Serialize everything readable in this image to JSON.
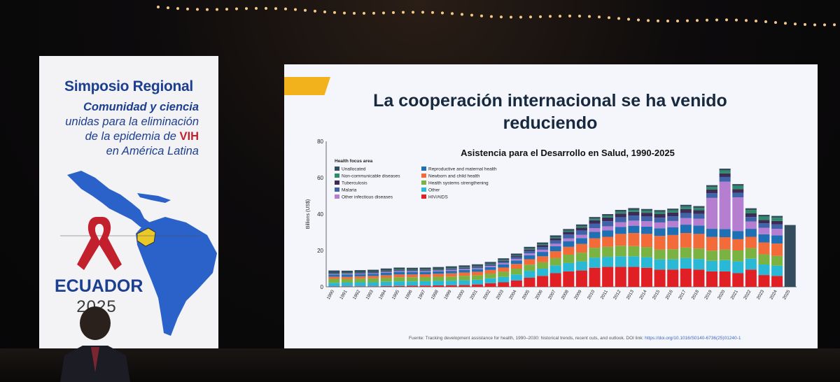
{
  "banner": {
    "title": "Simposio Regional",
    "line1": "Comunidad y ciencia",
    "line2": "unidas para la eliminación",
    "line3_prefix": "de la epidemia de ",
    "line3_highlight": "VIH",
    "line4": "en América Latina",
    "country": "ECUADOR",
    "year": "2025"
  },
  "slide": {
    "title": "La cooperación internacional se ha venido reduciendo",
    "source_text": "Fuente: Tracking development assistance for health, 1990–2030: historical trends, recent cuts, and outlook. DOI link: ",
    "source_link": "https://doi.org/10.1016/S0140-6736(25)01240-1"
  },
  "colors": {
    "accent": "#f2b21b",
    "title": "#17293f",
    "banner_blue": "#1c3f8f",
    "ribbon_red": "#c3202e"
  },
  "chart_data": {
    "type": "bar",
    "stacked": true,
    "title": "Asistencia para el Desarrollo en Salud, 1990-2025",
    "ylabel": "Billions (US$)",
    "xlabel": "",
    "ylim": [
      0,
      80
    ],
    "yticks": [
      0,
      20,
      40,
      60,
      80
    ],
    "legend_title": "Health focus area",
    "categories": [
      "1990",
      "1991",
      "1992",
      "1993",
      "1994",
      "1995",
      "1996",
      "1997",
      "1998",
      "1999",
      "2000",
      "2001",
      "2002",
      "2003",
      "2004",
      "2005",
      "2006",
      "2007",
      "2008",
      "2009",
      "2010",
      "2011",
      "2012",
      "2013",
      "2014",
      "2015",
      "2016",
      "2017",
      "2018",
      "2019",
      "2020",
      "2021",
      "2022",
      "2023",
      "2024",
      "2025"
    ],
    "series": [
      {
        "name": "HIV/AIDS",
        "color": "#e02024",
        "values": [
          0.2,
          0.3,
          0.3,
          0.3,
          0.4,
          0.5,
          0.6,
          0.7,
          0.8,
          0.9,
          1.0,
          1.3,
          2.0,
          2.5,
          3.5,
          5.0,
          6.0,
          7.5,
          8.5,
          9.0,
          10.5,
          11.0,
          11.0,
          11.0,
          10.5,
          9.5,
          9.5,
          10.0,
          9.5,
          8.5,
          8.5,
          7.5,
          9.5,
          6.5,
          6.0,
          0
        ]
      },
      {
        "name": "Other",
        "color": "#29b8d6",
        "values": [
          2.0,
          2.0,
          2.2,
          2.2,
          2.4,
          2.5,
          2.4,
          2.4,
          2.5,
          2.5,
          2.6,
          2.6,
          2.7,
          3.0,
          3.3,
          3.8,
          4.0,
          4.3,
          4.6,
          5.0,
          5.5,
          5.5,
          5.8,
          5.8,
          5.8,
          5.6,
          5.6,
          5.8,
          5.8,
          5.8,
          6.2,
          6.5,
          6.0,
          5.8,
          5.6,
          0
        ]
      },
      {
        "name": "Health systems strengthening",
        "color": "#7bb342",
        "values": [
          2.2,
          2.0,
          2.0,
          2.2,
          2.2,
          2.3,
          2.3,
          2.3,
          2.3,
          2.3,
          2.5,
          2.5,
          2.6,
          2.8,
          3.2,
          3.4,
          3.5,
          4.0,
          4.6,
          4.8,
          5.5,
          5.5,
          5.8,
          5.6,
          5.6,
          5.4,
          5.6,
          5.8,
          5.8,
          5.6,
          5.8,
          6.0,
          5.8,
          5.6,
          5.4,
          0
        ]
      },
      {
        "name": "Newborn and child health",
        "color": "#f26b38",
        "values": [
          1.2,
          1.2,
          1.3,
          1.3,
          1.4,
          1.5,
          1.5,
          1.5,
          1.6,
          1.7,
          1.8,
          1.9,
          2.0,
          2.3,
          2.6,
          3.0,
          3.3,
          3.8,
          4.3,
          4.8,
          5.2,
          5.5,
          6.5,
          7.2,
          7.2,
          7.5,
          7.8,
          8.0,
          8.0,
          7.5,
          6.8,
          6.2,
          6.2,
          6.5,
          6.8,
          0
        ]
      },
      {
        "name": "Reproductive and maternal health",
        "color": "#1f6fb4",
        "values": [
          1.2,
          1.2,
          1.2,
          1.2,
          1.3,
          1.4,
          1.3,
          1.3,
          1.3,
          1.4,
          1.4,
          1.4,
          1.5,
          1.7,
          1.9,
          2.2,
          2.4,
          2.7,
          3.0,
          3.2,
          3.5,
          3.6,
          3.8,
          4.0,
          4.0,
          4.2,
          4.3,
          4.6,
          4.6,
          4.5,
          4.5,
          4.5,
          4.4,
          4.5,
          4.5,
          0
        ]
      },
      {
        "name": "Other infectious diseases",
        "color": "#b57ed1",
        "values": [
          0.3,
          0.3,
          0.3,
          0.3,
          0.4,
          0.4,
          0.4,
          0.4,
          0.4,
          0.5,
          0.5,
          0.5,
          0.6,
          0.7,
          0.8,
          1.0,
          1.2,
          1.4,
          1.6,
          1.8,
          2.0,
          2.2,
          2.6,
          2.8,
          3.0,
          3.2,
          3.4,
          3.6,
          3.8,
          17.0,
          26.0,
          18.5,
          4.0,
          3.6,
          3.6,
          0
        ]
      },
      {
        "name": "Malaria",
        "color": "#3f63a8",
        "values": [
          0.2,
          0.2,
          0.2,
          0.2,
          0.3,
          0.3,
          0.3,
          0.3,
          0.3,
          0.4,
          0.4,
          0.5,
          0.6,
          0.8,
          1.0,
          1.3,
          1.5,
          1.8,
          2.2,
          2.4,
          2.6,
          2.8,
          2.8,
          2.8,
          2.6,
          2.6,
          2.6,
          2.8,
          2.6,
          2.6,
          2.6,
          2.5,
          2.5,
          2.4,
          2.4,
          0
        ]
      },
      {
        "name": "Tuberculosis",
        "color": "#3d2b55",
        "values": [
          0.2,
          0.2,
          0.2,
          0.2,
          0.3,
          0.3,
          0.3,
          0.3,
          0.3,
          0.3,
          0.3,
          0.4,
          0.4,
          0.5,
          0.6,
          0.8,
          1.0,
          1.2,
          1.4,
          1.6,
          1.8,
          2.0,
          2.0,
          2.0,
          2.0,
          2.0,
          2.0,
          2.2,
          2.0,
          2.0,
          2.0,
          2.0,
          2.0,
          1.9,
          1.9,
          0
        ]
      },
      {
        "name": "Non-communicable diseases",
        "color": "#2e8c6c",
        "values": [
          0.2,
          0.2,
          0.2,
          0.2,
          0.2,
          0.3,
          0.3,
          0.3,
          0.3,
          0.3,
          0.3,
          0.3,
          0.3,
          0.4,
          0.4,
          0.5,
          0.5,
          0.6,
          0.6,
          0.7,
          0.8,
          0.9,
          1.0,
          1.1,
          1.1,
          1.2,
          1.2,
          1.3,
          1.3,
          1.4,
          1.6,
          1.8,
          1.8,
          1.8,
          1.8,
          0
        ]
      },
      {
        "name": "Unallocated",
        "color": "#334c5e",
        "values": [
          1.3,
          1.3,
          1.3,
          1.3,
          1.2,
          1.1,
          1.1,
          1.1,
          1.1,
          1.0,
          1.0,
          1.0,
          1.0,
          1.0,
          1.0,
          1.0,
          1.0,
          1.0,
          1.0,
          1.0,
          1.0,
          1.0,
          1.0,
          1.0,
          1.0,
          1.0,
          1.0,
          1.0,
          1.0,
          1.0,
          1.0,
          1.0,
          1.0,
          1.0,
          1.0,
          34.0
        ]
      }
    ],
    "legend_col1": [
      "Unallocated",
      "Non-communicable diseases",
      "Tuberculosis",
      "Malaria",
      "Other infectious diseases"
    ],
    "legend_col2": [
      "Reproductive and maternal health",
      "Newborn and child health",
      "Health systems strengthening",
      "Other",
      "HIV/AIDS"
    ],
    "legend_placement": "top-left",
    "grid": false
  }
}
